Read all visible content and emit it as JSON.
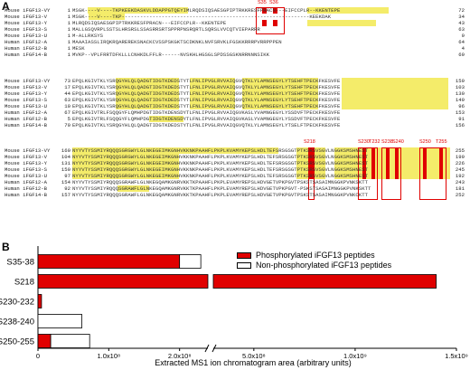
{
  "panel_a": {
    "letter": "A",
    "site_labels_block1": [
      "S35",
      "S36"
    ],
    "site_labels_block3": [
      "S218",
      "S230",
      "T232",
      "S238",
      "S240",
      "S250",
      "T255"
    ],
    "blocks": [
      {
        "rows": [
          {
            "name": "Mouse iFGF13-VY",
            "start": "1",
            "seq": "MSGK----V----TKPKEEKDASKVLDDAPPGTQEYIMLRQDSIQSAESGPIPTRKKRESFPRACN---EIFCCPLR--KKENTEPE",
            "end": "72"
          },
          {
            "name": "Mouse iFGF13-V",
            "start": "1",
            "seq": "MSGK----V----TKP-------------------------------------------------------------KEEKDAK",
            "end": "34"
          },
          {
            "name": "Mouse iFGF13-Y",
            "start": "1",
            "seq": "MLRQDSIQSAESGPIPTRKKRESFPRACN---EIFCCPLR--KKENTEPE",
            "end": "43"
          },
          {
            "name": "Mouse iFGF13-S",
            "start": "1",
            "seq": "MALLGSQVRPLSSTSLHRSRSLSSASRRSRTSPPRPNSRQRTLSQRSLVVCQTVIEPARRR",
            "end": "63"
          },
          {
            "name": "Mouse iFGF13-U",
            "start": "1",
            "seq": "M-ALLRKSYS",
            "end": "9"
          },
          {
            "name": "Human iFGF12-A",
            "start": "1",
            "seq": "MAAAIASSLIRQKRQAREREKSNACKCVSSPSKGKTSCDKNKLNVFSRVKLFGSKKRRRPVRRPPPEN",
            "end": "64"
          },
          {
            "name": "Human iFGF12-B",
            "start": "1",
            "seq": "MESK",
            "end": "4"
          },
          {
            "name": "Human iFGF14-B",
            "start": "1",
            "seq": "MVKP--VPLFRRTDFKLLLCNHKDLFFLR------NVSKHLHGSGLSPDSSGSKNRRNNNSIKK",
            "end": "69"
          }
        ]
      },
      {
        "rows": [
          {
            "name": "Mouse iFGF13-VY",
            "start": "73",
            "seq": "EPQLKGIVTKLYSRQGYHLQLQADGTIDGTKDEDSTYTLFNLIPVGLRVVAIQGVQTKLYLAMNSEGYLYTSEHFTPECKFKESVFE",
            "end": "159"
          },
          {
            "name": "Mouse iFGF13-V",
            "start": "17",
            "seq": "EPQLKGIVTKLYSRQGYHLQLQADGTIDGTKDEDSTYTLFNLIPVGLRVVAIQGVQTKLYLAMNSEGYLYTSEHFTPECKFKESVFE",
            "end": "103"
          },
          {
            "name": "Mouse iFGF13-Y",
            "start": "44",
            "seq": "EPQLKGIVTKLYSRQGYHLQLQADGTIDGTKDEDSTYTLFNLIPVGLRVVAIQGVQTKLYLAMNSEGYLYTSEHFTPECKFKESVFE",
            "end": "130"
          },
          {
            "name": "Mouse iFGF13-S",
            "start": "63",
            "seq": "EPQLKGIVTKLYSRQGYHLQLQADGTIDGTKDEDSTYTLFNLIPVGLRVVAIQGVQTKLYLAMNSEGYLYTSEHFTPECKFKESVFE",
            "end": "149"
          },
          {
            "name": "Mouse iFGF13-U",
            "start": "10",
            "seq": "EPQLKGIVTKLYSRQGYHLQLQADGTIDGTKDEDSTYTLFNLIPVGLRVVAIQGVQTKLYLAMNSEGYLYTSEHFTPECKFKESVFE",
            "end": "96"
          },
          {
            "name": "Human iFGF12-A",
            "start": "67",
            "seq": "EPQLKGIVTRLFSQQGYFLQMHPDGTIDGTKDENSDYTLFNLIPVGLRVVAIQGVKASLYVAMNGEGYLYSSDVFTPECKFKESVFE",
            "end": "153"
          },
          {
            "name": "Human iFGF12-B",
            "start": "5",
            "seq": "EPQLKGIVTRLFSQQGYFLQMHPDGTIDGTKDENSDYTLFNLIPVGLRVVAIQGVKASLYVAMNGEGYLYSSDVFTPECKFKESVFE",
            "end": "91"
          },
          {
            "name": "Human iFGF14-B",
            "start": "70",
            "seq": "EPQLKGIVTKLYSRQGYHLQLQADGTIDGTKDEDSTYTLFNLIPVGLRVVAIQGVQTKLYLAMNSEGYLYTSELFTPECKFKESVFE",
            "end": "156"
          }
        ]
      },
      {
        "rows": [
          {
            "name": "Mouse iFGF13-VY",
            "start": "160",
            "seq": "NYYVTYSSMIYRQQQSGRGWYLGLNKEGEIMKGNHVKKNKPAAHFLPKPLKVAMYKEPSLHDLTEFSRSGSGTPTKSRSVSGVLNGGKSMSHNEST",
            "end": "255"
          },
          {
            "name": "Mouse iFGF13-V",
            "start": "104",
            "seq": "NYYVTYSSMIYRQQQSGRGWYLGLNKEGEIMKGNHVKKNKPAAHFLPKPLKVAMYKEPSLHDLTEFSRSGSGTPTKSRSVSGVLNGGKSMSHNEST",
            "end": "199"
          },
          {
            "name": "Mouse iFGF13-Y",
            "start": "131",
            "seq": "NYYVTYSSMIYRQQQSGRGWYLGLNKEGEIMKGNHVKKNKPAAHFLPKPLKVAMYKEPSLHDLTEFSRSGSGTPTKSRSVSGVLNGGKSMSHNEST",
            "end": "226"
          },
          {
            "name": "Mouse iFGF13-S",
            "start": "150",
            "seq": "NYYVTYSSMIYRQQQSGRGWYLGLNKEGEIMKGNHVKKNKPAAHFLPKPLKVAMYKEPSLHDLTEFSRSGSGTPTKSRSVSGVLNGGKSMSHNEST",
            "end": "245"
          },
          {
            "name": "Mouse iFGF13-U",
            "start": "97",
            "seq": "NYYVTYSSMIYRQQQSGRGWYLGLNKEGEIMKGNHVKKNKPAAHFLPKPLKVAMYKEPSLHDLTEFSRSGSGTPTKSRSVSGVLNGGKSMSHNEST",
            "end": "192"
          },
          {
            "name": "Human iFGF12-A",
            "start": "154",
            "seq": "NYYVTYSSMIYRQQQSGRAWFLGLNKEGQAMKGNRVKKTKPAAHFLPKPLEVAMYREPSLHDVGETVPKPGVTPSKSTSASAIMNGGKPVNKSKTT",
            "end": "243"
          },
          {
            "name": "Human iFGF12-B",
            "start": "92",
            "seq": "NYYVTYSSMIYRQQQSGRAWFLGLNKEGQAMKGNRVKKTKPAAHFLPKPLEVAMYREPSLHDVGETVPKPGVT-PSKSTSASAIMNGGKPVNKSKTT",
            "end": "181"
          },
          {
            "name": "Human iFGF14-B",
            "start": "157",
            "seq": "NYYVTYSSMIYRQQQSGRAWFLGLNKEGQAMKGNRVKKTKPAAHFLPKPLEVAMYREPSLHDVGETVPKPGVTPSKSTSASAIMNGGKPVNKCKTT",
            "end": "252"
          }
        ]
      }
    ]
  },
  "panel_b": {
    "letter": "B",
    "legend": [
      {
        "label": "Phosphorylated iFGF13 peptides",
        "color": "#e00000"
      },
      {
        "label": "Non-phosphorylated iFGF13 peptides",
        "color": "#ffffff"
      }
    ],
    "x_ticks_left": [
      "0",
      "1.0x10⁸",
      "2.0x10⁸"
    ],
    "x_ticks_right": [
      "5.0x10⁸",
      "1.0x10⁹",
      "1.5x10⁹"
    ],
    "xlabel": "Extracted MS1 ion chromatogram area (arbitrary units)"
  },
  "chart_data": {
    "type": "bar",
    "orientation": "horizontal",
    "stacked": true,
    "broken_axis": {
      "break_from": 240000000,
      "break_to": 300000000
    },
    "categories": [
      "S35-38",
      "S218",
      "S230-232",
      "S238-240",
      "S250-255"
    ],
    "series": [
      {
        "name": "Phosphorylated iFGF13 peptides",
        "color": "#e00000",
        "values": [
          200000000,
          1400000000,
          5000000,
          0,
          18000000
        ]
      },
      {
        "name": "Non-phosphorylated iFGF13 peptides",
        "color": "#ffffff",
        "values": [
          30000000,
          0,
          0,
          62000000,
          55000000
        ]
      }
    ],
    "xlabel": "Extracted MS1 ion chromatogram area (arbitrary units)",
    "xlim": [
      0,
      1500000000
    ]
  }
}
